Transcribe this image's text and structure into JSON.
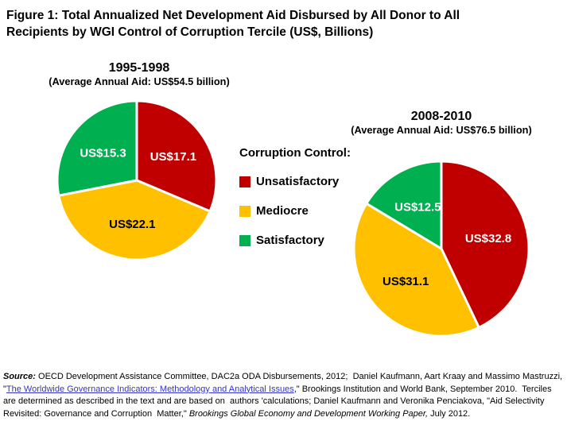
{
  "figure_title": {
    "line1": "Figure 1: Total Annualized Net Development Aid Disbursed  by All Donor to All",
    "line2": "Recipients by WGI Control of Corruption Tercile (US$, Billions)"
  },
  "legend": {
    "title": "Corruption Control:",
    "items": [
      {
        "label": "Unsatisfactory",
        "color": "#C00000"
      },
      {
        "label": "Mediocre",
        "color": "#FFC000"
      },
      {
        "label": "Satisfactory",
        "color": "#00B050"
      }
    ]
  },
  "colors": {
    "unsatisfactory": "#C00000",
    "mediocre": "#FFC000",
    "satisfactory": "#00B050",
    "link": "#3333CC"
  },
  "chart_data": [
    {
      "type": "pie",
      "title": "1995-1998",
      "subtitle": "(Average Annual Aid: US$54.5 billion)",
      "total": 54.5,
      "start_angle": "top",
      "direction": "clockwise",
      "slices": [
        {
          "category": "Unsatisfactory",
          "value": 17.1,
          "label": "US$17.1",
          "color": "#C00000",
          "label_color": "#FFFFFF"
        },
        {
          "category": "Mediocre",
          "value": 22.1,
          "label": "US$22.1",
          "color": "#FFC000",
          "label_color": "#000000"
        },
        {
          "category": "Satisfactory",
          "value": 15.3,
          "label": "US$15.3",
          "color": "#00B050",
          "label_color": "#FFFFFF"
        }
      ]
    },
    {
      "type": "pie",
      "title": "2008-2010",
      "subtitle": "(Average Annual Aid: US$76.5 billion)",
      "total": 76.5,
      "start_angle": "top",
      "direction": "clockwise",
      "slices": [
        {
          "category": "Unsatisfactory",
          "value": 32.8,
          "label": "US$32.8",
          "color": "#C00000",
          "label_color": "#FFFFFF"
        },
        {
          "category": "Mediocre",
          "value": 31.1,
          "label": "US$31.1",
          "color": "#FFC000",
          "label_color": "#000000"
        },
        {
          "category": "Satisfactory",
          "value": 12.5,
          "label": "US$12.5",
          "color": "#00B050",
          "label_color": "#FFFFFF"
        }
      ]
    }
  ],
  "source": {
    "segments": [
      {
        "text": "Source:",
        "style": "bold-italic"
      },
      {
        "text": " OECD Development Assistance Committee, DAC2a ODA Disbursements, 2012;  Daniel Kaufmann, Aart Kraay and Massimo Mastruzzi, \"",
        "style": "normal"
      },
      {
        "text": "The Worldwide Governance Indicators: Methodology and Analytical Issues",
        "style": "link"
      },
      {
        "text": ",\" Brookings Institution and World Bank, September 2010.  Terciles are determined as described in the text and are based on  authors 'calculations; Daniel Kaufmann and Veronika Penciakova, \"Aid Selectivity Revisited: Governance and Corruption  Matter,\" ",
        "style": "normal"
      },
      {
        "text": "Brookings Global Economy and Development Working Paper,",
        "style": "italic"
      },
      {
        "text": " July 2012.",
        "style": "normal"
      }
    ]
  }
}
